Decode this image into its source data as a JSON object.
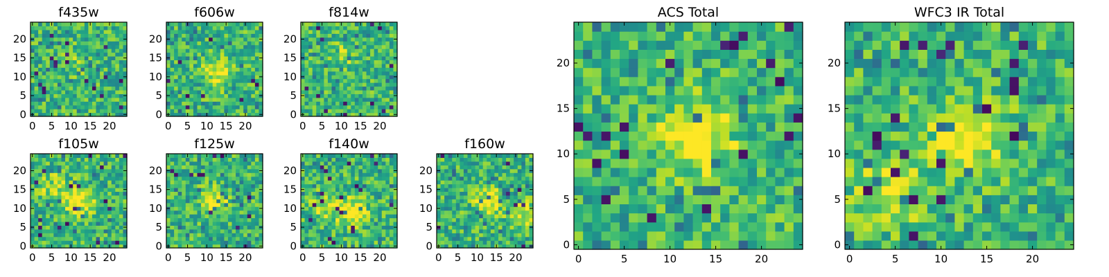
{
  "chart_data": [
    {
      "type": "heatmap",
      "title": "f435w",
      "xticks": [
        "0",
        "5",
        "10",
        "15",
        "20"
      ],
      "yticks": [
        "0",
        "5",
        "10",
        "15",
        "20"
      ],
      "xlim": [
        -0.5,
        24.5
      ],
      "ylim": [
        -0.5,
        24.5
      ],
      "grid_size": 25,
      "colormap": "viridis",
      "cell_values": "mottled noise, mostly green with scattered dark pixels"
    },
    {
      "type": "heatmap",
      "title": "f606w",
      "xticks": [
        "0",
        "5",
        "10",
        "15",
        "20"
      ],
      "yticks": [
        "0",
        "5",
        "10",
        "15",
        "20"
      ],
      "xlim": [
        -0.5,
        24.5
      ],
      "ylim": [
        -0.5,
        24.5
      ],
      "grid_size": 25,
      "colormap": "viridis"
    },
    {
      "type": "heatmap",
      "title": "f814w",
      "xticks": [
        "0",
        "5",
        "10",
        "15",
        "20"
      ],
      "yticks": [
        "0",
        "5",
        "10",
        "15",
        "20"
      ],
      "xlim": [
        -0.5,
        24.5
      ],
      "ylim": [
        -0.5,
        24.5
      ],
      "grid_size": 25,
      "colormap": "viridis"
    },
    {
      "type": "heatmap",
      "title": "f105w",
      "xticks": [
        "0",
        "5",
        "10",
        "15",
        "20"
      ],
      "yticks": [
        "0",
        "5",
        "10",
        "15",
        "20"
      ],
      "xlim": [
        -0.5,
        24.5
      ],
      "ylim": [
        -0.5,
        24.5
      ],
      "grid_size": 25,
      "colormap": "viridis"
    },
    {
      "type": "heatmap",
      "title": "f125w",
      "xticks": [
        "0",
        "5",
        "10",
        "15",
        "20"
      ],
      "yticks": [
        "0",
        "5",
        "10",
        "15",
        "20"
      ],
      "xlim": [
        -0.5,
        24.5
      ],
      "ylim": [
        -0.5,
        24.5
      ],
      "grid_size": 25,
      "colormap": "viridis"
    },
    {
      "type": "heatmap",
      "title": "f140w",
      "xticks": [
        "0",
        "5",
        "10",
        "15",
        "20"
      ],
      "yticks": [
        "0",
        "5",
        "10",
        "15",
        "20"
      ],
      "xlim": [
        -0.5,
        24.5
      ],
      "ylim": [
        -0.5,
        24.5
      ],
      "grid_size": 25,
      "colormap": "viridis"
    },
    {
      "type": "heatmap",
      "title": "f160w",
      "xticks": [
        "0",
        "5",
        "10",
        "15",
        "20"
      ],
      "yticks": [
        "0",
        "5",
        "10",
        "15",
        "20"
      ],
      "xlim": [
        -0.5,
        24.5
      ],
      "ylim": [
        -0.5,
        24.5
      ],
      "grid_size": 25,
      "colormap": "viridis"
    },
    {
      "type": "heatmap",
      "title": "ACS Total",
      "xticks": [
        "0",
        "5",
        "10",
        "15",
        "20"
      ],
      "yticks": [
        "0",
        "5",
        "10",
        "15",
        "20"
      ],
      "xlim": [
        -0.5,
        24.5
      ],
      "ylim": [
        -0.5,
        24.5
      ],
      "grid_size": 25,
      "colormap": "viridis"
    },
    {
      "type": "heatmap",
      "title": "WFC3 IR Total",
      "xticks": [
        "0",
        "5",
        "10",
        "15",
        "20"
      ],
      "yticks": [
        "0",
        "5",
        "10",
        "15",
        "20"
      ],
      "xlim": [
        -0.5,
        24.5
      ],
      "ylim": [
        -0.5,
        24.5
      ],
      "grid_size": 25,
      "colormap": "viridis"
    }
  ]
}
